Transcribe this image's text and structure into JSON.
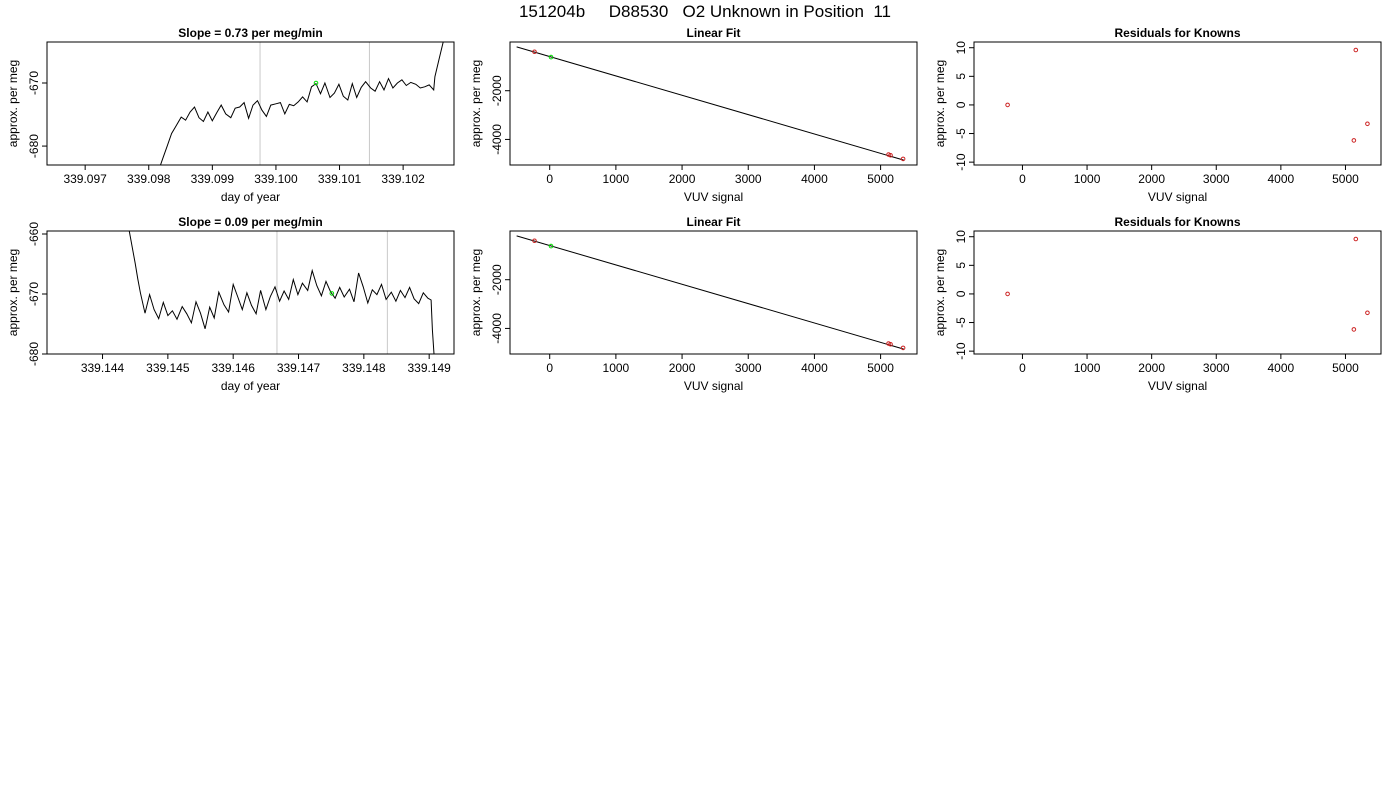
{
  "title": "151204b     D88530   O2 Unknown in Position  11",
  "chart_data": [
    {
      "type": "line",
      "title": "Slope =  0.73  per meg/min",
      "xlabel": "day of year",
      "ylabel": "approx. per meg",
      "xlim": [
        339.0964,
        339.1028
      ],
      "ylim": [
        -683,
        -663.5
      ],
      "xticks": [
        "339.097",
        "339.098",
        "339.099",
        "339.100",
        "339.101",
        "339.102"
      ],
      "yticks": [
        "-680",
        "-670"
      ],
      "vlines": [
        339.09975,
        339.10147
      ],
      "marker": {
        "x": 339.10063,
        "y": -670,
        "color": "#00dd00"
      },
      "series": [
        {
          "x": [
            339.09815,
            339.09822,
            339.09829,
            339.09836,
            339.09843,
            339.09851,
            339.09858,
            339.09865,
            339.09872,
            339.09879,
            339.09886,
            339.09893,
            339.099,
            339.09907,
            339.09914,
            339.09921,
            339.09929,
            339.09936,
            339.09943,
            339.0995,
            339.09957,
            339.09964,
            339.09971,
            339.09978,
            339.09985,
            339.09992,
            339.1,
            339.10007,
            339.10014,
            339.10021,
            339.10028,
            339.10035,
            339.10042,
            339.10049,
            339.10056,
            339.10063,
            339.1007,
            339.10077,
            339.10085,
            339.10092,
            339.10099,
            339.10106,
            339.10113,
            339.1012,
            339.10127,
            339.10134,
            339.10141,
            339.10149,
            339.10156,
            339.10163,
            339.1017,
            339.10177,
            339.10184,
            339.10191,
            339.10198,
            339.10205,
            339.10212,
            339.1022,
            339.10227,
            339.10234,
            339.10241,
            339.10248,
            339.1025,
            339.10257,
            339.10263
          ],
          "values": [
            -684,
            -682,
            -680,
            -678,
            -676.8,
            -675.4,
            -675.9,
            -674.6,
            -673.8,
            -675.5,
            -676.1,
            -674.6,
            -676,
            -674.7,
            -673.5,
            -674.9,
            -675.5,
            -674,
            -673.8,
            -673.1,
            -675.6,
            -673.5,
            -672.8,
            -674.3,
            -675.3,
            -673.5,
            -673.3,
            -673.1,
            -674.9,
            -673.4,
            -673.6,
            -673,
            -672.2,
            -673,
            -670.6,
            -670.1,
            -671.7,
            -670,
            -672.3,
            -671.6,
            -670.2,
            -672.1,
            -672.7,
            -670.1,
            -672.3,
            -670.7,
            -669.8,
            -670.8,
            -671.3,
            -669.8,
            -671.1,
            -669.3,
            -670.8,
            -670,
            -669.5,
            -670.4,
            -669.9,
            -670.2,
            -670.8,
            -670.6,
            -670.3,
            -671.1,
            -669,
            -666,
            -663.5
          ]
        }
      ]
    },
    {
      "type": "scatter",
      "title": "Linear Fit",
      "xlabel": "VUV signal",
      "ylabel": "approx. per meg",
      "xlim": [
        -600,
        5550
      ],
      "ylim": [
        -5050,
        0
      ],
      "xticks": [
        "0",
        "1000",
        "2000",
        "3000",
        "4000",
        "5000"
      ],
      "yticks": [
        "-4000",
        "-2000"
      ],
      "fit_line": {
        "x": [
          -500,
          5350
        ],
        "y": [
          -200,
          -4850
        ]
      },
      "points": [
        {
          "x": -230,
          "y": -400,
          "color": "#cc2222"
        },
        {
          "x": 20,
          "y": -620,
          "color": "#00dd00"
        },
        {
          "x": 5120,
          "y": -4620,
          "color": "#cc2222"
        },
        {
          "x": 5150,
          "y": -4650,
          "color": "#cc2222"
        },
        {
          "x": 5340,
          "y": -4800,
          "color": "#cc2222"
        }
      ]
    },
    {
      "type": "scatter",
      "title": "Residuals for Knowns",
      "xlabel": "VUV signal",
      "ylabel": "approx. per meg",
      "xlim": [
        -750,
        5550
      ],
      "ylim": [
        -10.5,
        11
      ],
      "xticks": [
        "0",
        "1000",
        "2000",
        "3000",
        "4000",
        "5000"
      ],
      "yticks": [
        "-10",
        "-5",
        "0",
        "5",
        "10"
      ],
      "points": [
        {
          "x": -230,
          "y": 0,
          "color": "#cc2222"
        },
        {
          "x": 5160,
          "y": 9.6,
          "color": "#cc2222"
        },
        {
          "x": 5130,
          "y": -6.2,
          "color": "#cc2222"
        },
        {
          "x": 5340,
          "y": -3.3,
          "color": "#cc2222"
        }
      ]
    },
    {
      "type": "line",
      "title": "Slope =  0.09  per meg/min",
      "xlabel": "day of year",
      "ylabel": "approx. per meg",
      "xlim": [
        339.14315,
        339.14938
      ],
      "ylim": [
        -680,
        -659.5
      ],
      "xticks": [
        "339.144",
        "339.145",
        "339.146",
        "339.147",
        "339.148",
        "339.149"
      ],
      "yticks": [
        "-680",
        "-670",
        "-660"
      ],
      "vlines": [
        339.14667,
        339.14836
      ],
      "marker": {
        "x": 339.14751,
        "y": -669.9,
        "color": "#00dd00"
      },
      "series": [
        {
          "x": [
            339.1444,
            339.1445,
            339.14454,
            339.14458,
            339.14465,
            339.14472,
            339.14479,
            339.14486,
            339.14493,
            339.145,
            339.14507,
            339.14514,
            339.14522,
            339.14529,
            339.14536,
            339.14543,
            339.1455,
            339.14557,
            339.14564,
            339.14571,
            339.14578,
            339.14586,
            339.14593,
            339.146,
            339.14607,
            339.14614,
            339.14621,
            339.14628,
            339.14635,
            339.14642,
            339.1465,
            339.14657,
            339.14664,
            339.14671,
            339.14678,
            339.14685,
            339.14692,
            339.14699,
            339.14706,
            339.14714,
            339.14721,
            339.14728,
            339.14735,
            339.14742,
            339.14749,
            339.14756,
            339.14763,
            339.1477,
            339.14778,
            339.14785,
            339.14792,
            339.14799,
            339.14806,
            339.14813,
            339.1482,
            339.14827,
            339.14834,
            339.14842,
            339.14849,
            339.14856,
            339.14863,
            339.1487,
            339.14877,
            339.14884,
            339.14891,
            339.14898,
            339.14903,
            339.14905,
            339.14908
          ],
          "values": [
            -659,
            -664.9,
            -667.5,
            -669.8,
            -673.2,
            -670.1,
            -672.6,
            -674.1,
            -671.4,
            -673.6,
            -672.8,
            -674.2,
            -672.1,
            -673.3,
            -674.8,
            -671.3,
            -673.2,
            -675.8,
            -672.2,
            -674,
            -669.7,
            -671.8,
            -673,
            -668.4,
            -670.5,
            -672.6,
            -669.8,
            -671.9,
            -673.3,
            -669.4,
            -672.6,
            -670.4,
            -668.8,
            -671.2,
            -669.5,
            -670.9,
            -667.6,
            -670.1,
            -668.2,
            -669.4,
            -666.1,
            -668.6,
            -670.3,
            -667.9,
            -669.6,
            -670.7,
            -668.9,
            -670.5,
            -669.2,
            -671.3,
            -666.5,
            -668.8,
            -671.5,
            -669.3,
            -670.1,
            -668.4,
            -670.9,
            -669.7,
            -671.2,
            -669.4,
            -670.6,
            -668.9,
            -670.8,
            -671.6,
            -669.8,
            -670.7,
            -671,
            -676,
            -681
          ]
        }
      ]
    },
    {
      "type": "scatter",
      "title": "Linear Fit",
      "xlabel": "VUV signal",
      "ylabel": "approx. per meg",
      "xlim": [
        -600,
        5550
      ],
      "ylim": [
        -5050,
        0
      ],
      "xticks": [
        "0",
        "1000",
        "2000",
        "3000",
        "4000",
        "5000"
      ],
      "yticks": [
        "-4000",
        "-2000"
      ],
      "fit_line": {
        "x": [
          -500,
          5350
        ],
        "y": [
          -200,
          -4850
        ]
      },
      "points": [
        {
          "x": -230,
          "y": -400,
          "color": "#cc2222"
        },
        {
          "x": 20,
          "y": -620,
          "color": "#00dd00"
        },
        {
          "x": 5120,
          "y": -4620,
          "color": "#cc2222"
        },
        {
          "x": 5150,
          "y": -4650,
          "color": "#cc2222"
        },
        {
          "x": 5340,
          "y": -4800,
          "color": "#cc2222"
        }
      ]
    },
    {
      "type": "scatter",
      "title": "Residuals for Knowns",
      "xlabel": "VUV signal",
      "ylabel": "approx. per meg",
      "xlim": [
        -750,
        5550
      ],
      "ylim": [
        -10.5,
        11
      ],
      "xticks": [
        "0",
        "1000",
        "2000",
        "3000",
        "4000",
        "5000"
      ],
      "yticks": [
        "-10",
        "-5",
        "0",
        "5",
        "10"
      ],
      "points": [
        {
          "x": -230,
          "y": 0,
          "color": "#cc2222"
        },
        {
          "x": 5160,
          "y": 9.6,
          "color": "#cc2222"
        },
        {
          "x": 5130,
          "y": -6.2,
          "color": "#cc2222"
        },
        {
          "x": 5340,
          "y": -3.3,
          "color": "#cc2222"
        }
      ]
    }
  ]
}
